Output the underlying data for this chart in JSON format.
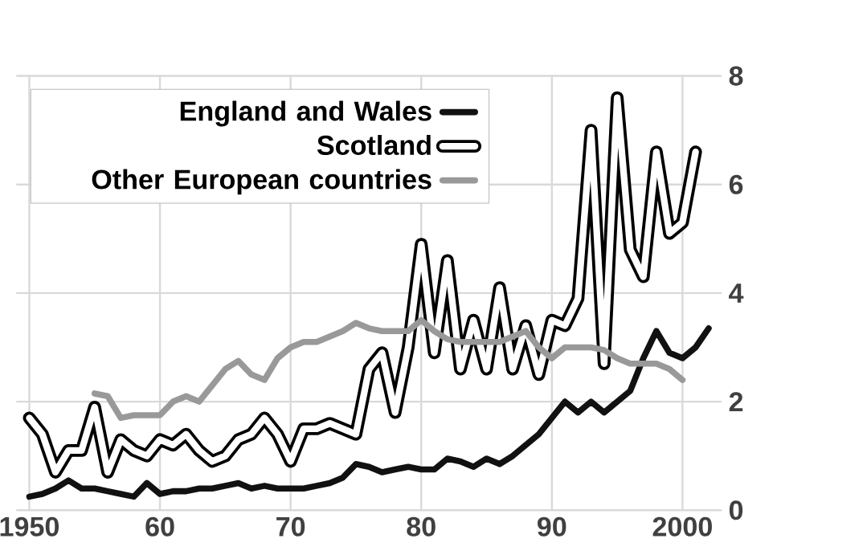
{
  "chart_data": {
    "type": "line",
    "x": [
      1950,
      1951,
      1952,
      1953,
      1954,
      1955,
      1956,
      1957,
      1958,
      1959,
      1960,
      1961,
      1962,
      1963,
      1964,
      1965,
      1966,
      1967,
      1968,
      1969,
      1970,
      1971,
      1972,
      1973,
      1974,
      1975,
      1976,
      1977,
      1978,
      1979,
      1980,
      1981,
      1982,
      1983,
      1984,
      1985,
      1986,
      1987,
      1988,
      1989,
      1990,
      1991,
      1992,
      1993,
      1994,
      1995,
      1996,
      1997,
      1998,
      1999,
      2000,
      2001,
      2002
    ],
    "series": [
      {
        "name": "England and Wales",
        "color": "#111111",
        "values": [
          0.25,
          0.3,
          0.4,
          0.55,
          0.4,
          0.4,
          0.35,
          0.3,
          0.25,
          0.5,
          0.3,
          0.35,
          0.35,
          0.4,
          0.4,
          0.45,
          0.5,
          0.4,
          0.45,
          0.4,
          0.4,
          0.4,
          0.45,
          0.5,
          0.6,
          0.85,
          0.8,
          0.7,
          0.75,
          0.8,
          0.75,
          0.75,
          0.95,
          0.9,
          0.8,
          0.95,
          0.85,
          1.0,
          1.2,
          1.4,
          1.7,
          2.0,
          1.8,
          2.0,
          1.8,
          2.0,
          2.2,
          2.8,
          3.3,
          2.9,
          2.8,
          3.0,
          3.35
        ]
      },
      {
        "name": "Scotland",
        "color": "#ffffff",
        "values": [
          1.7,
          1.4,
          0.7,
          1.1,
          1.1,
          1.9,
          0.7,
          1.3,
          1.1,
          1.0,
          1.3,
          1.2,
          1.4,
          1.1,
          0.9,
          1.0,
          1.3,
          1.4,
          1.7,
          1.4,
          0.9,
          1.5,
          1.5,
          1.6,
          1.5,
          1.4,
          2.6,
          2.9,
          1.8,
          3.0,
          4.9,
          2.9,
          4.6,
          2.6,
          3.5,
          2.6,
          4.1,
          2.6,
          3.4,
          2.5,
          3.5,
          3.4,
          3.9,
          7.0,
          2.7,
          7.6,
          4.8,
          4.3,
          6.6,
          5.1,
          5.3,
          6.6,
          null
        ]
      },
      {
        "name": "Other European countries",
        "color": "#999999",
        "values": [
          null,
          null,
          null,
          null,
          null,
          2.15,
          2.1,
          1.7,
          1.75,
          1.75,
          1.75,
          2.0,
          2.1,
          2.0,
          2.3,
          2.6,
          2.75,
          2.5,
          2.4,
          2.8,
          3.0,
          3.1,
          3.1,
          3.2,
          3.3,
          3.45,
          3.35,
          3.3,
          3.3,
          3.3,
          3.5,
          3.3,
          3.15,
          3.1,
          3.1,
          3.1,
          3.1,
          3.2,
          3.3,
          3.0,
          2.8,
          3.0,
          3.0,
          3.0,
          2.95,
          2.8,
          2.7,
          2.7,
          2.7,
          2.6,
          2.4,
          null,
          null
        ]
      }
    ],
    "xlim": [
      1949,
      2003
    ],
    "ylim": [
      0,
      8
    ],
    "xticks": [
      1950,
      {
        "value": 1960,
        "label": "60"
      },
      {
        "value": 1970,
        "label": "70"
      },
      {
        "value": 1980,
        "label": "80"
      },
      {
        "value": 1990,
        "label": "90"
      },
      2000
    ],
    "yticks": [
      0,
      2,
      4,
      6,
      8
    ],
    "grid": true,
    "legend": "top left",
    "marker": "none",
    "line_style": "solid"
  }
}
